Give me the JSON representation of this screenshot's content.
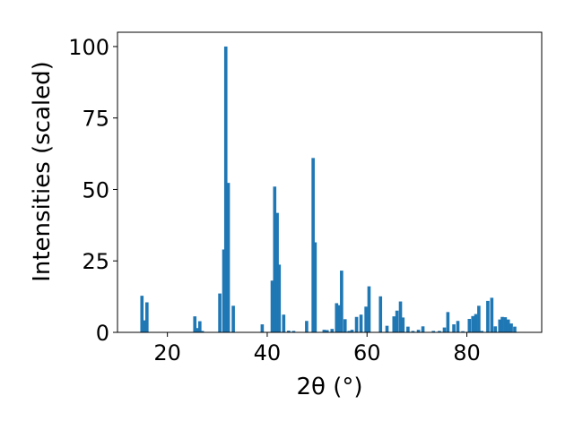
{
  "chart_data": {
    "type": "bar",
    "xlabel": "2θ (°)",
    "ylabel": "Intensities (scaled)",
    "xlim": [
      10,
      95
    ],
    "ylim": [
      0,
      105
    ],
    "x_ticks": [
      20,
      40,
      60,
      80
    ],
    "y_ticks": [
      0,
      25,
      50,
      75,
      100
    ],
    "bar_width": 0.65,
    "bar_color": "#1f77b4",
    "grid": false,
    "x": [
      14.9,
      15.4,
      15.9,
      25.5,
      26.0,
      26.5,
      27.0,
      30.5,
      31.3,
      31.7,
      32.2,
      33.2,
      39.0,
      41.0,
      41.5,
      42.0,
      42.4,
      43.3,
      44.3,
      45.3,
      47.9,
      49.2,
      49.6,
      51.4,
      52.0,
      53.0,
      53.9,
      54.3,
      54.9,
      55.6,
      56.4,
      57.0,
      57.9,
      58.8,
      59.8,
      60.4,
      62.7,
      64.0,
      65.4,
      66.0,
      66.7,
      67.2,
      68.2,
      69.2,
      70.3,
      71.2,
      73.3,
      74.5,
      75.5,
      76.2,
      77.4,
      78.2,
      79.2,
      80.5,
      81.2,
      81.8,
      82.4,
      83.0,
      84.2,
      85.0,
      85.7,
      86.6,
      87.1,
      87.7,
      88.3,
      88.9,
      89.6
    ],
    "values": [
      12.8,
      4.2,
      10.5,
      5.6,
      1.5,
      3.9,
      0.5,
      13.6,
      29.0,
      100.0,
      52.3,
      9.3,
      2.8,
      18.1,
      51.0,
      41.8,
      23.7,
      6.2,
      0.6,
      0.5,
      4.0,
      61.0,
      31.5,
      0.9,
      0.8,
      1.2,
      10.2,
      9.5,
      21.6,
      4.6,
      0.5,
      0.9,
      5.4,
      6.2,
      9.0,
      16.1,
      12.6,
      2.3,
      5.6,
      7.6,
      10.8,
      5.2,
      2.0,
      0.5,
      0.9,
      2.1,
      0.5,
      0.5,
      1.7,
      7.1,
      2.8,
      4.0,
      0.4,
      4.7,
      5.7,
      6.4,
      9.3,
      0.5,
      11.0,
      12.1,
      2.1,
      4.5,
      5.4,
      5.3,
      4.5,
      3.1,
      2.0
    ]
  }
}
